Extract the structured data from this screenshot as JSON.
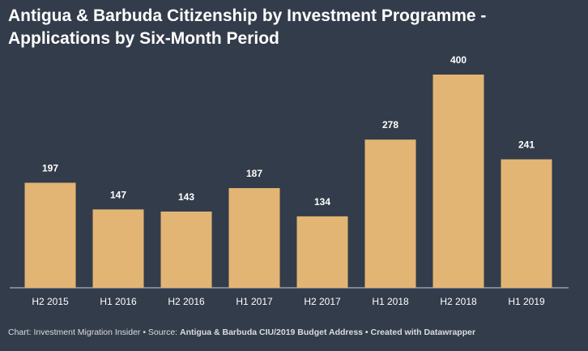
{
  "header": {
    "title_line1": "Antigua & Barbuda Citizenship by Investment Programme -",
    "title_line2": "Applications by Six-Month Period"
  },
  "chart_data": {
    "type": "bar",
    "categories": [
      "H2 2015",
      "H1 2016",
      "H2 2016",
      "H1 2017",
      "H2 2017",
      "H1 2018",
      "H2 2018",
      "H1 2019"
    ],
    "values": [
      197,
      147,
      143,
      187,
      134,
      278,
      400,
      241
    ],
    "data_labels": [
      "197",
      "147",
      "143",
      "187",
      "134",
      "278",
      "400",
      "241"
    ],
    "ylim": [
      0,
      400
    ],
    "grid": false,
    "bar_color": "#e3b574",
    "label_color": "#ffffff"
  },
  "footer": {
    "prefix": "Chart: Investment Migration Insider • Source: ",
    "source": "Antigua & Barbuda CIU/2019 Budget Address",
    "suffix": " • Created with Datawrapper"
  },
  "colors": {
    "background": "#333c4a",
    "bar": "#e3b574",
    "text": "#ffffff"
  }
}
